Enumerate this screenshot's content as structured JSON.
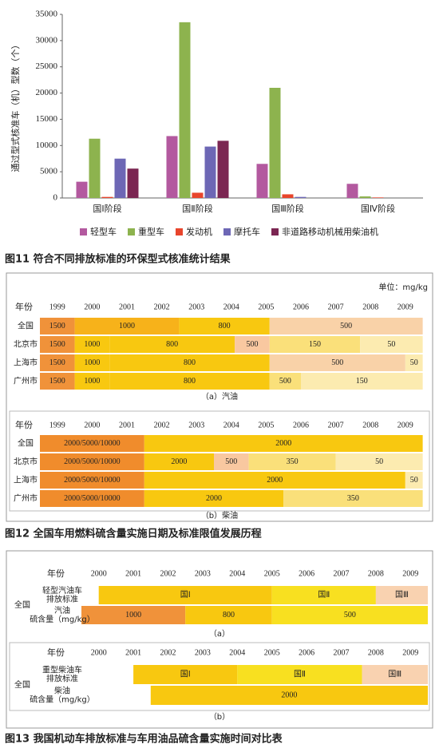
{
  "chart_data": {
    "type": "bar",
    "title": "图11 符合不同排放标准的环保型式核准统计结果",
    "ylabel": "通过型式核准车（机）型数（个）",
    "categories": [
      "国Ⅰ阶段",
      "国Ⅱ阶段",
      "国Ⅲ阶段",
      "国Ⅳ阶段"
    ],
    "series": [
      {
        "name": "轻型车",
        "color": "#b3599f",
        "values": [
          3100,
          11800,
          6500,
          2700
        ]
      },
      {
        "name": "重型车",
        "color": "#8db34e",
        "values": [
          11300,
          33500,
          21000,
          300
        ]
      },
      {
        "name": "发动机",
        "color": "#e8452c",
        "values": [
          200,
          1000,
          700,
          100
        ]
      },
      {
        "name": "摩托车",
        "color": "#6d67b5",
        "values": [
          7500,
          9800,
          200,
          0
        ]
      },
      {
        "name": "非道路移动机械用柴油机",
        "color": "#7b2652",
        "values": [
          5600,
          10900,
          0,
          0
        ]
      }
    ],
    "ylim": [
      0,
      35000
    ],
    "yticks": [
      0,
      5000,
      10000,
      15000,
      20000,
      25000,
      30000,
      35000
    ],
    "grid": false,
    "legend": "bottom"
  },
  "figure12": {
    "unit": "单位：mg/kg",
    "caption": "图12 全国车用燃料硫含量实施日期及标准限值发展历程",
    "panels": [
      {
        "year_header": "年份",
        "years": [
          1999,
          2000,
          2001,
          2002,
          2003,
          2004,
          2005,
          2006,
          2007,
          2008,
          2009
        ],
        "subcaption": "（a）汽油",
        "rows": [
          {
            "label": "全国",
            "segments": [
              {
                "label": "1500",
                "from": 1999,
                "to": 2000,
                "color": "#f0923a"
              },
              {
                "label": "1000",
                "from": 2000,
                "to": 2003,
                "color": "#f7b21a"
              },
              {
                "label": "800",
                "from": 2003,
                "to": 2005.6,
                "color": "#f8c810"
              },
              {
                "label": "500",
                "from": 2005.6,
                "to": 2010,
                "color": "#f9d2a8"
              }
            ]
          },
          {
            "label": "北京市",
            "segments": [
              {
                "label": "1500",
                "from": 1999,
                "to": 2000,
                "color": "#f0923a"
              },
              {
                "label": "1000",
                "from": 2000,
                "to": 2001,
                "color": "#f8c810"
              },
              {
                "label": "800",
                "from": 2001,
                "to": 2004.6,
                "color": "#f8c810"
              },
              {
                "label": "500",
                "from": 2004.6,
                "to": 2005.6,
                "color": "#f9c8a0"
              },
              {
                "label": "150",
                "from": 2005.6,
                "to": 2008.2,
                "color": "#fae07a"
              },
              {
                "label": "50",
                "from": 2008.2,
                "to": 2010,
                "color": "#fcebb0"
              }
            ]
          },
          {
            "label": "上海市",
            "segments": [
              {
                "label": "1500",
                "from": 1999,
                "to": 2000,
                "color": "#f0923a"
              },
              {
                "label": "1000",
                "from": 2000,
                "to": 2001,
                "color": "#f8c810"
              },
              {
                "label": "800",
                "from": 2001,
                "to": 2005.6,
                "color": "#f8c810"
              },
              {
                "label": "500",
                "from": 2005.6,
                "to": 2009.5,
                "color": "#f9d2a8"
              },
              {
                "label": "50",
                "from": 2009.5,
                "to": 2010,
                "color": "#fcebb0"
              }
            ]
          },
          {
            "label": "广州市",
            "segments": [
              {
                "label": "1500",
                "from": 1999,
                "to": 2000,
                "color": "#f0923a"
              },
              {
                "label": "1000",
                "from": 2000,
                "to": 2001,
                "color": "#f8c810"
              },
              {
                "label": "800",
                "from": 2001,
                "to": 2005.6,
                "color": "#f8c810"
              },
              {
                "label": "500",
                "from": 2005.6,
                "to": 2006.5,
                "color": "#fae07a"
              },
              {
                "label": "150",
                "from": 2006.5,
                "to": 2010,
                "color": "#fcebb0"
              }
            ]
          }
        ]
      },
      {
        "year_header": "年份",
        "years": [
          1999,
          2000,
          2001,
          2002,
          2003,
          2004,
          2005,
          2006,
          2007,
          2008,
          2009
        ],
        "subcaption": "（b）柴油",
        "rows": [
          {
            "label": "全国",
            "segments": [
              {
                "label": "2000/5000/10000",
                "from": 1999,
                "to": 2002,
                "color": "#f08c2c"
              },
              {
                "label": "2000",
                "from": 2002,
                "to": 2010,
                "color": "#f8c810"
              }
            ]
          },
          {
            "label": "北京市",
            "segments": [
              {
                "label": "2000/5000/10000",
                "from": 1999,
                "to": 2002,
                "color": "#f08c2c"
              },
              {
                "label": "2000",
                "from": 2002,
                "to": 2004,
                "color": "#f8c810"
              },
              {
                "label": "500",
                "from": 2004,
                "to": 2005,
                "color": "#f9c8a0"
              },
              {
                "label": "350",
                "from": 2005,
                "to": 2007.5,
                "color": "#fae07a"
              },
              {
                "label": "50",
                "from": 2007.5,
                "to": 2010,
                "color": "#fcebb0"
              }
            ]
          },
          {
            "label": "上海市",
            "segments": [
              {
                "label": "2000/5000/10000",
                "from": 1999,
                "to": 2002,
                "color": "#f08c2c"
              },
              {
                "label": "2000",
                "from": 2002,
                "to": 2009.5,
                "color": "#f8c810"
              },
              {
                "label": "50",
                "from": 2009.5,
                "to": 2010,
                "color": "#fcebb0"
              }
            ]
          },
          {
            "label": "广州市",
            "segments": [
              {
                "label": "2000/5000/10000",
                "from": 1999,
                "to": 2002,
                "color": "#f08c2c"
              },
              {
                "label": "2000",
                "from": 2002,
                "to": 2006,
                "color": "#f8c810"
              },
              {
                "label": "350",
                "from": 2006,
                "to": 2010,
                "color": "#fae07a"
              }
            ]
          }
        ]
      }
    ]
  },
  "figure13": {
    "caption": "图13 我国机动车排放标准与车用油品硫含量实施时间对比表",
    "panels": [
      {
        "year_header": "年份",
        "years": [
          2000,
          2001,
          2002,
          2003,
          2004,
          2005,
          2006,
          2007,
          2008,
          2009
        ],
        "region": "全国",
        "subcaption": "（a）",
        "rows": [
          {
            "label": [
              "轻型汽油车",
              "排放标准"
            ],
            "segments": [
              {
                "label": "国Ⅰ",
                "from": 2000.5,
                "to": 2005.5,
                "color": "#f8c810"
              },
              {
                "label": "国Ⅱ",
                "from": 2005.5,
                "to": 2008.5,
                "color": "#f8e020"
              },
              {
                "label": "国Ⅲ",
                "from": 2008.5,
                "to": 2010,
                "color": "#f9d2b0"
              }
            ]
          },
          {
            "label": [
              "汽油",
              "硫含量（mg/kg）"
            ],
            "segments": [
              {
                "label": "1000",
                "from": 2000,
                "to": 2003,
                "color": "#f0923a"
              },
              {
                "label": "800",
                "from": 2003,
                "to": 2005.5,
                "color": "#f8c810"
              },
              {
                "label": "500",
                "from": 2005.5,
                "to": 2010,
                "color": "#f8e020"
              }
            ]
          }
        ]
      },
      {
        "year_header": "年份",
        "years": [
          2000,
          2001,
          2002,
          2003,
          2004,
          2005,
          2006,
          2007,
          2008,
          2009
        ],
        "region": "全国",
        "subcaption": "（b）",
        "rows": [
          {
            "label": [
              "重型柴油车",
              "排放标准"
            ],
            "segments": [
              {
                "label": "国Ⅰ",
                "from": 2001.5,
                "to": 2004.5,
                "color": "#f8c810"
              },
              {
                "label": "国Ⅱ",
                "from": 2004.5,
                "to": 2008.1,
                "color": "#f8e020"
              },
              {
                "label": "国Ⅲ",
                "from": 2008.1,
                "to": 2010,
                "color": "#f9d2b0"
              }
            ]
          },
          {
            "label": [
              "柴油",
              "硫含量（mg/kg）"
            ],
            "segments": [
              {
                "label": "2000",
                "from": 2002,
                "to": 2010,
                "color": "#f8c810"
              }
            ]
          }
        ]
      }
    ]
  }
}
